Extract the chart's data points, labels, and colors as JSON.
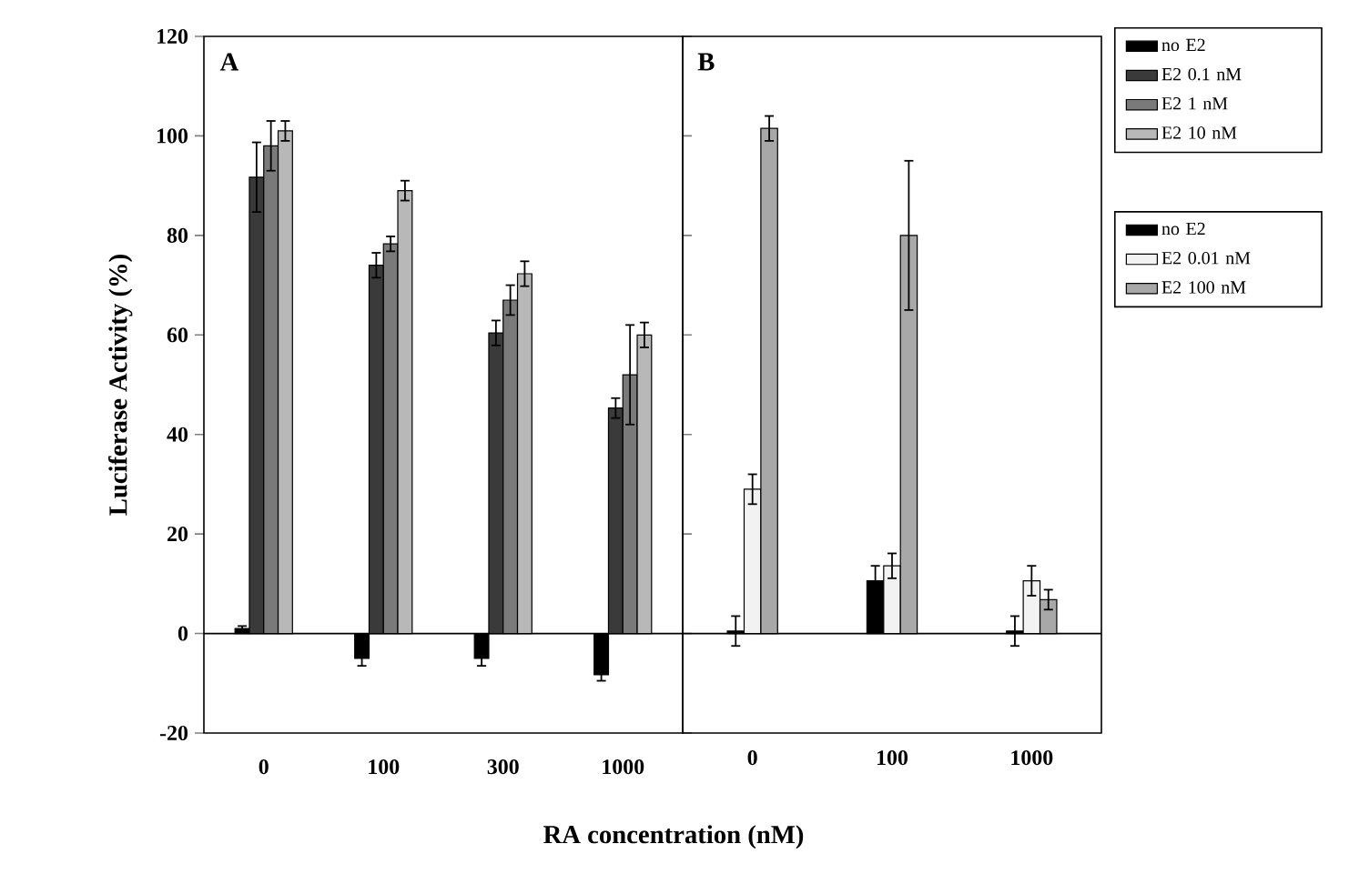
{
  "chart_data": [
    {
      "type": "bar",
      "title": "A",
      "xlabel": "RA concentration (nM)",
      "ylabel": "Luciferase Activity (%)",
      "categories": [
        "0",
        "100",
        "300",
        "1000"
      ],
      "ylim": [
        -20,
        120
      ],
      "yticks": [
        -20,
        0,
        20,
        40,
        60,
        80,
        100,
        120
      ],
      "ref_lines": [
        {
          "axis": "y",
          "value": 0
        }
      ],
      "legend": "right",
      "series": [
        {
          "name": "no E2",
          "color": "#000000",
          "values": [
            1,
            -5,
            -5,
            -8.3
          ],
          "errors": [
            0.5,
            1.5,
            1.5,
            1.2
          ]
        },
        {
          "name": "E2  0.1 nM",
          "color": "#3a3a3a",
          "values": [
            91.7,
            74,
            60.4,
            45.3
          ],
          "errors": [
            7,
            2.5,
            2.5,
            2
          ]
        },
        {
          "name": "E2  1 nM",
          "color": "#7a7a7a",
          "values": [
            98,
            78.3,
            67,
            52
          ],
          "errors": [
            5,
            1.5,
            3,
            10
          ]
        },
        {
          "name": "E2  10 nM",
          "color": "#b8b8b8",
          "values": [
            101,
            89,
            72.3,
            60
          ],
          "errors": [
            2,
            2,
            2.5,
            2.5
          ]
        }
      ]
    },
    {
      "type": "bar",
      "title": "B",
      "categories": [
        "0",
        "100",
        "1000"
      ],
      "ylim": [
        -20,
        120
      ],
      "tick_labels": "x",
      "ref_lines": [
        {
          "axis": "y",
          "value": 0
        }
      ],
      "legend": "right",
      "series": [
        {
          "name": "no E2",
          "color": "#000000",
          "values": [
            0.5,
            10.6,
            0.5
          ],
          "errors": [
            3,
            3,
            3
          ]
        },
        {
          "name": "E2 0.01 nM",
          "color": "#f2f2f2",
          "values": [
            29,
            13.6,
            10.6
          ],
          "errors": [
            3,
            2.5,
            3
          ]
        },
        {
          "name": "E2 100 nM",
          "color": "#a8a8a8",
          "values": [
            101.5,
            80,
            6.8
          ],
          "errors": [
            2.5,
            15,
            2
          ]
        }
      ]
    }
  ]
}
